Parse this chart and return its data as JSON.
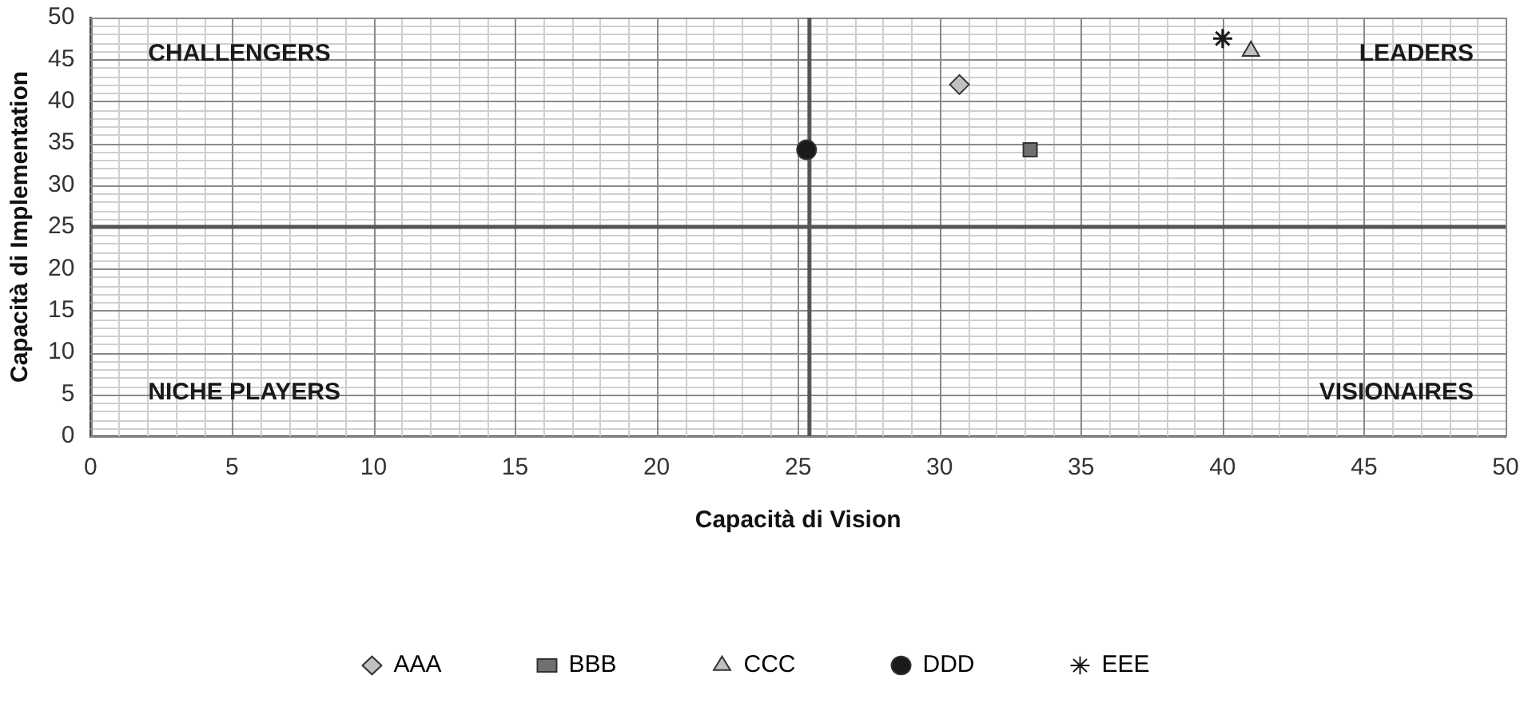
{
  "chart_data": {
    "type": "scatter",
    "xlabel": "Capacità di Vision",
    "ylabel": "Capacità di Implementation",
    "annotations": [
      "CHALLENGERS",
      "LEADERS",
      "NICHE PLAYERS",
      "VISIONAIRES"
    ],
    "xlim": [
      0,
      50
    ],
    "xticks": [
      0,
      5,
      10,
      15,
      20,
      25,
      30,
      35,
      40,
      45,
      50
    ],
    "ylim": [
      0,
      50
    ],
    "yticks": [
      0,
      5,
      10,
      15,
      20,
      25,
      30,
      35,
      40,
      45,
      50
    ],
    "grid": true,
    "legend": "bottom",
    "ref_lines": [
      {
        "axis": "x",
        "value": 25.4,
        "color": "#555555"
      },
      {
        "axis": "y",
        "value": 25,
        "color": "#555555"
      }
    ],
    "series": [
      {
        "name": "AAA",
        "color": "#c0c0c0",
        "marker": "diamond",
        "x": [
          30.7
        ],
        "values": [
          42
        ]
      },
      {
        "name": "BBB",
        "color": "#707070",
        "marker": "square",
        "x": [
          33.2
        ],
        "values": [
          34.2
        ]
      },
      {
        "name": "CCC",
        "color": "#c0c0c0",
        "marker": "triangle",
        "x": [
          41
        ],
        "values": [
          46
        ]
      },
      {
        "name": "DDD",
        "color": "#1a1a1a",
        "marker": "circle",
        "x": [
          25.3
        ],
        "values": [
          34.2
        ]
      },
      {
        "name": "EEE",
        "color": "#1a1a1a",
        "marker": "cross",
        "x": [
          40
        ],
        "values": [
          47.5
        ]
      }
    ]
  }
}
